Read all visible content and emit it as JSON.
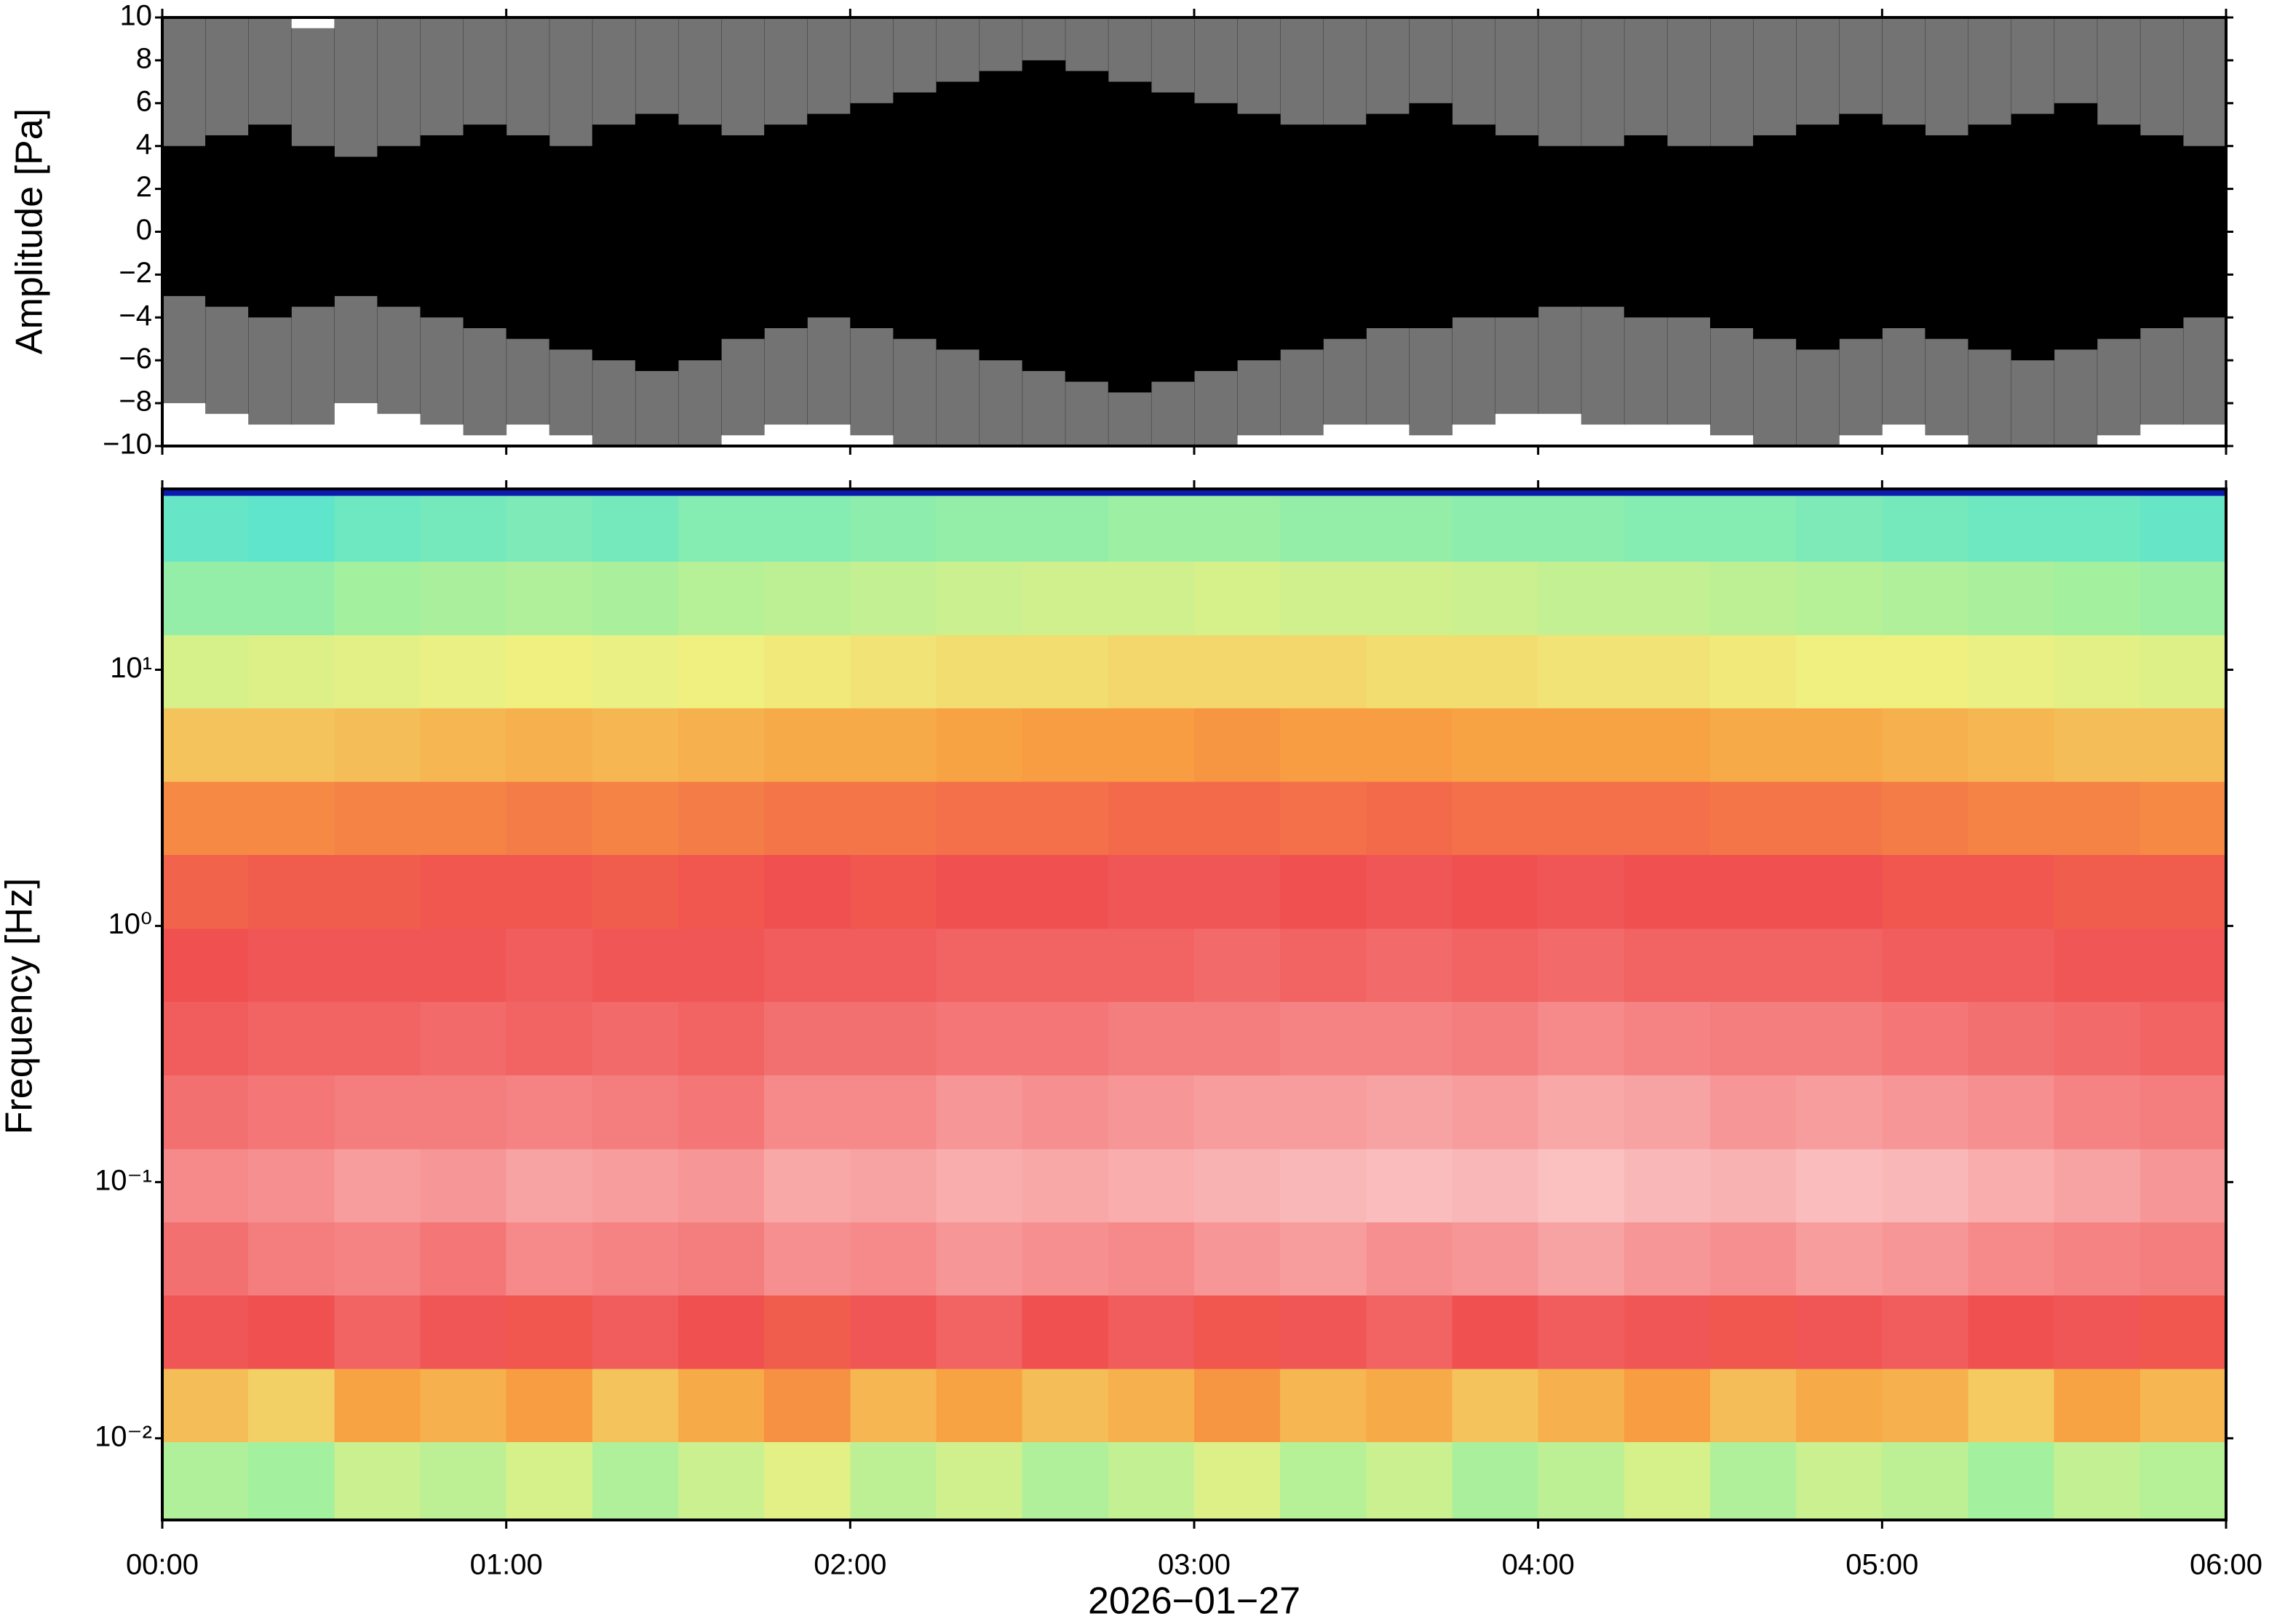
{
  "chart_data": [
    {
      "type": "waveform",
      "ylabel": "Amplitude [Pa]",
      "color": "#000000",
      "xlim": [
        0,
        6
      ],
      "xedges": [
        0,
        0.125,
        0.25,
        0.375,
        0.5,
        0.625,
        0.75,
        0.875,
        1,
        1.125,
        1.25,
        1.375,
        1.5,
        1.625,
        1.75,
        1.875,
        2,
        2.125,
        2.25,
        2.375,
        2.5,
        2.625,
        2.75,
        2.875,
        3,
        3.125,
        3.25,
        3.375,
        3.5,
        3.625,
        3.75,
        3.875,
        4,
        4.125,
        4.25,
        4.375,
        4.5,
        4.625,
        4.75,
        4.875,
        5,
        5.125,
        5.25,
        5.375,
        5.5,
        5.625,
        5.75,
        5.875,
        6
      ],
      "core_max": [
        4,
        4.5,
        5,
        4,
        3.5,
        4,
        4.5,
        5,
        4.5,
        4,
        5,
        5.5,
        5,
        4.5,
        5,
        5.5,
        6,
        6.5,
        7,
        7.5,
        8,
        7.5,
        7,
        6.5,
        6,
        5.5,
        5,
        5,
        5.5,
        6,
        5,
        4.5,
        4,
        4,
        4.5,
        4,
        4,
        4.5,
        5,
        5.5,
        5,
        4.5,
        5,
        5.5,
        6,
        5,
        4.5,
        4
      ],
      "core_min": [
        -3,
        -3.5,
        -4,
        -3.5,
        -3,
        -3.5,
        -4,
        -4.5,
        -5,
        -5.5,
        -6,
        -6.5,
        -6,
        -5,
        -4.5,
        -4,
        -4.5,
        -5,
        -5.5,
        -6,
        -6.5,
        -7,
        -7.5,
        -7,
        -6.5,
        -6,
        -5.5,
        -5,
        -4.5,
        -4.5,
        -4,
        -4,
        -3.5,
        -3.5,
        -4,
        -4,
        -4.5,
        -5,
        -5.5,
        -5,
        -4.5,
        -5,
        -5.5,
        -6,
        -5.5,
        -5,
        -4.5,
        -4
      ],
      "peak_max": [
        10,
        10,
        10,
        9.5,
        10,
        10,
        10,
        10,
        10,
        10,
        10,
        10,
        10,
        10,
        10,
        10,
        10,
        10,
        10,
        10,
        10,
        10,
        10,
        10,
        10,
        10,
        10,
        10,
        10,
        10,
        10,
        10,
        10,
        10,
        10,
        10,
        10,
        10,
        10,
        10,
        10,
        10,
        10,
        10,
        10,
        10,
        10,
        10
      ],
      "peak_min": [
        -8,
        -8.5,
        -9,
        -9,
        -8,
        -8.5,
        -9,
        -9.5,
        -9,
        -9.5,
        -10,
        -10,
        -10,
        -9.5,
        -9,
        -9,
        -9.5,
        -10,
        -10,
        -10,
        -10,
        -10,
        -10,
        -10,
        -10,
        -9.5,
        -9.5,
        -9,
        -9,
        -9.5,
        -9,
        -8.5,
        -8.5,
        -9,
        -9,
        -9,
        -9.5,
        -10,
        -10,
        -9.5,
        -9,
        -9.5,
        -10,
        -10,
        -10,
        -9.5,
        -9,
        -9
      ],
      "ylim": [
        -10,
        10
      ],
      "yticks": [
        {
          "value": -10,
          "label": "−10"
        },
        {
          "value": -8,
          "label": "−8"
        },
        {
          "value": -6,
          "label": "−6"
        },
        {
          "value": -4,
          "label": "−4"
        },
        {
          "value": -2,
          "label": "−2"
        },
        0,
        2,
        4,
        6,
        8,
        10
      ]
    },
    {
      "type": "heatmap",
      "ylabel": "Frequency [Hz]",
      "xlabel": "2026−01−27",
      "log_y": true,
      "xlim": [
        0,
        6
      ],
      "xticks": [
        {
          "value": 0,
          "label": "00:00"
        },
        {
          "value": 1,
          "label": "01:00"
        },
        {
          "value": 2,
          "label": "02:00"
        },
        {
          "value": 3,
          "label": "03:00"
        },
        {
          "value": 4,
          "label": "04:00"
        },
        {
          "value": 5,
          "label": "05:00"
        },
        {
          "value": 6,
          "label": "06:00"
        }
      ],
      "ylim": [
        0.0048,
        50.8
      ],
      "yticks": [
        {
          "value": 0.01,
          "label": "10⁻²"
        },
        {
          "value": 0.1,
          "label": "10⁻¹"
        },
        {
          "value": 1,
          "label": "10⁰"
        },
        {
          "value": 10,
          "label": "10¹"
        }
      ],
      "zlim": [
        0,
        1
      ],
      "colormap": [
        "#00007a",
        "#2040ff",
        "#40e0e0",
        "#a0f0a0",
        "#f0f080",
        "#f8a040",
        "#f05050",
        "#f8a0a0",
        "#fde0e0"
      ],
      "xedges": [
        0,
        0.25,
        0.5,
        0.75,
        1,
        1.25,
        1.5,
        1.75,
        2,
        2.25,
        2.5,
        2.75,
        3,
        3.25,
        3.5,
        3.75,
        4,
        4.25,
        4.5,
        4.75,
        5,
        5.25,
        5.5,
        5.75,
        6
      ],
      "yedges": [
        0.0048,
        0.0097,
        0.0187,
        0.0362,
        0.07,
        0.135,
        0.262,
        0.507,
        0.98,
        1.9,
        3.67,
        7.1,
        13.7,
        26.5,
        48,
        50.8
      ],
      "z": [
        [
          0.4,
          0.38,
          0.44,
          0.42,
          0.46,
          0.4,
          0.44,
          0.48,
          0.42,
          0.45,
          0.4,
          0.43,
          0.47,
          0.41,
          0.44,
          0.39,
          0.42,
          0.46,
          0.4,
          0.44,
          0.42,
          0.38,
          0.43,
          0.41
        ],
        [
          0.58,
          0.55,
          0.62,
          0.6,
          0.63,
          0.57,
          0.61,
          0.65,
          0.59,
          0.62,
          0.58,
          0.6,
          0.64,
          0.59,
          0.61,
          0.57,
          0.6,
          0.63,
          0.58,
          0.61,
          0.6,
          0.56,
          0.62,
          0.59
        ],
        [
          0.76,
          0.75,
          0.78,
          0.76,
          0.74,
          0.77,
          0.75,
          0.73,
          0.76,
          0.78,
          0.75,
          0.77,
          0.74,
          0.76,
          0.78,
          0.75,
          0.77,
          0.76,
          0.74,
          0.76,
          0.77,
          0.75,
          0.76,
          0.74
        ],
        [
          0.8,
          0.82,
          0.83,
          0.81,
          0.84,
          0.83,
          0.82,
          0.85,
          0.84,
          0.86,
          0.85,
          0.84,
          0.86,
          0.87,
          0.85,
          0.86,
          0.88,
          0.86,
          0.85,
          0.87,
          0.86,
          0.84,
          0.83,
          0.82
        ],
        [
          0.84,
          0.85,
          0.87,
          0.86,
          0.88,
          0.87,
          0.86,
          0.89,
          0.88,
          0.9,
          0.89,
          0.9,
          0.91,
          0.92,
          0.93,
          0.92,
          0.94,
          0.92,
          0.91,
          0.93,
          0.92,
          0.9,
          0.88,
          0.86
        ],
        [
          0.8,
          0.81,
          0.82,
          0.82,
          0.83,
          0.82,
          0.81,
          0.84,
          0.84,
          0.86,
          0.85,
          0.86,
          0.87,
          0.87,
          0.88,
          0.87,
          0.89,
          0.88,
          0.86,
          0.87,
          0.86,
          0.85,
          0.83,
          0.82
        ],
        [
          0.77,
          0.78,
          0.78,
          0.79,
          0.78,
          0.79,
          0.78,
          0.8,
          0.8,
          0.81,
          0.81,
          0.82,
          0.82,
          0.83,
          0.83,
          0.82,
          0.84,
          0.83,
          0.82,
          0.82,
          0.81,
          0.8,
          0.79,
          0.78
        ],
        [
          0.75,
          0.76,
          0.76,
          0.76,
          0.77,
          0.76,
          0.76,
          0.77,
          0.77,
          0.78,
          0.78,
          0.78,
          0.79,
          0.78,
          0.79,
          0.78,
          0.79,
          0.78,
          0.78,
          0.78,
          0.77,
          0.77,
          0.76,
          0.76
        ],
        [
          0.72,
          0.73,
          0.73,
          0.74,
          0.74,
          0.73,
          0.74,
          0.75,
          0.74,
          0.75,
          0.75,
          0.76,
          0.76,
          0.75,
          0.76,
          0.75,
          0.76,
          0.75,
          0.75,
          0.75,
          0.74,
          0.74,
          0.73,
          0.73
        ],
        [
          0.66,
          0.66,
          0.67,
          0.67,
          0.68,
          0.67,
          0.68,
          0.69,
          0.69,
          0.7,
          0.7,
          0.71,
          0.71,
          0.7,
          0.71,
          0.7,
          0.7,
          0.7,
          0.69,
          0.69,
          0.68,
          0.67,
          0.67,
          0.66
        ],
        [
          0.57,
          0.57,
          0.58,
          0.59,
          0.6,
          0.59,
          0.6,
          0.61,
          0.61,
          0.62,
          0.63,
          0.63,
          0.64,
          0.63,
          0.63,
          0.62,
          0.62,
          0.62,
          0.61,
          0.61,
          0.6,
          0.59,
          0.58,
          0.58
        ],
        [
          0.46,
          0.47,
          0.48,
          0.49,
          0.5,
          0.49,
          0.5,
          0.51,
          0.52,
          0.53,
          0.53,
          0.54,
          0.54,
          0.54,
          0.53,
          0.53,
          0.52,
          0.52,
          0.51,
          0.5,
          0.5,
          0.49,
          0.48,
          0.47
        ],
        [
          0.36,
          0.36,
          0.38,
          0.39,
          0.4,
          0.39,
          0.41,
          0.42,
          0.43,
          0.44,
          0.45,
          0.45,
          0.46,
          0.45,
          0.45,
          0.44,
          0.43,
          0.43,
          0.42,
          0.41,
          0.4,
          0.39,
          0.38,
          0.37
        ],
        [
          0.3,
          0.29,
          0.31,
          0.32,
          0.33,
          0.32,
          0.34,
          0.34,
          0.35,
          0.36,
          0.36,
          0.37,
          0.37,
          0.36,
          0.36,
          0.35,
          0.35,
          0.34,
          0.34,
          0.33,
          0.32,
          0.31,
          0.31,
          0.3
        ],
        [
          0.05,
          0.05,
          0.05,
          0.05,
          0.05,
          0.05,
          0.05,
          0.05,
          0.05,
          0.05,
          0.05,
          0.05,
          0.05,
          0.05,
          0.05,
          0.05,
          0.05,
          0.05,
          0.05,
          0.05,
          0.05,
          0.05,
          0.05,
          0.05
        ]
      ]
    }
  ]
}
